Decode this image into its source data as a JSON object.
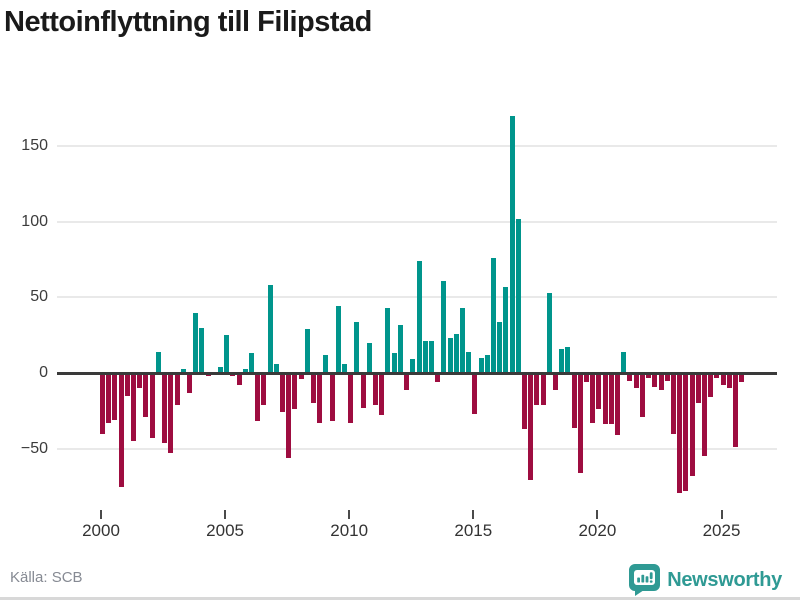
{
  "header": {
    "title": "Nettoinflyttning till Filipstad"
  },
  "footer": {
    "source": "Källa: SCB",
    "brand": "Newsworthy"
  },
  "colors": {
    "positive": "#00958c",
    "negative": "#9e0d40",
    "brand_teal": "#2f9a94",
    "zero_line": "#3a3a3a",
    "gridline": "#e9e9e9",
    "title_text": "#1a1a1a",
    "tick_text": "#333333",
    "source_text": "#868a93"
  },
  "chart_data": {
    "type": "bar",
    "title": "Nettoinflyttning till Filipstad",
    "xlabel": "",
    "ylabel": "",
    "frequency": "quarterly",
    "x_tick_labels": [
      "2000",
      "2005",
      "2010",
      "2015",
      "2020",
      "2025"
    ],
    "y_tick_values": [
      150,
      100,
      50,
      0,
      -50
    ],
    "y_tick_labels": [
      "150",
      "100",
      "50",
      "0",
      "−50"
    ],
    "ylim": [
      -90,
      185
    ],
    "grid": true,
    "legend": false,
    "series": [
      {
        "name": "Nettoinflyttning",
        "start": "2000Q1",
        "values": [
          -40,
          -33,
          -31,
          -75,
          -15,
          -45,
          -10,
          -29,
          -43,
          14,
          -46,
          -53,
          -21,
          3,
          -13,
          40,
          30,
          -2,
          0,
          4,
          25,
          -2,
          -8,
          3,
          13,
          -32,
          -21,
          58,
          6,
          -26,
          -56,
          -24,
          -4,
          29,
          -20,
          -33,
          12,
          -32,
          44,
          6,
          -33,
          34,
          -23,
          20,
          -21,
          -28,
          43,
          13,
          32,
          -11,
          9,
          74,
          21,
          21,
          -6,
          61,
          23,
          26,
          43,
          14,
          -27,
          10,
          12,
          76,
          34,
          57,
          170,
          102,
          -37,
          -71,
          -21,
          -21,
          53,
          -11,
          16,
          17,
          -36,
          -66,
          -6,
          -33,
          -24,
          -34,
          -34,
          -41,
          14,
          -5,
          -10,
          -29,
          -3,
          -9,
          -11,
          -5,
          -40,
          -79,
          -78,
          -68,
          -20,
          -55,
          -16,
          -3,
          -8,
          -10,
          -49,
          -6
        ]
      }
    ],
    "positive_color": "#00958c",
    "negative_color": "#9e0d40"
  }
}
